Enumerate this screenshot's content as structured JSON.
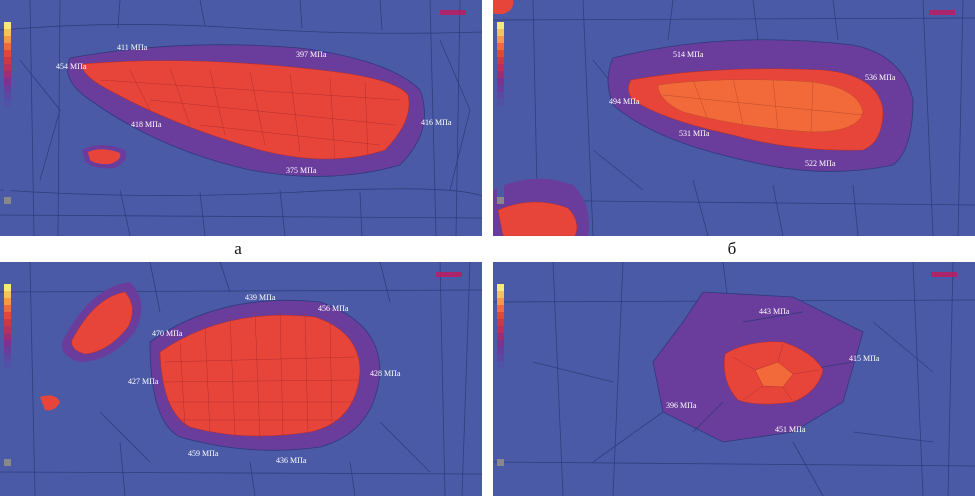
{
  "captions": {
    "a": "а",
    "b": "б"
  },
  "panels": {
    "a": {
      "labels": [
        "454 МПа",
        "411 МПа",
        "397 МПа",
        "418 МПа",
        "416 МПа",
        "375 МПа"
      ]
    },
    "b": {
      "labels": [
        "514 МПа",
        "536 МПа",
        "494 МПа",
        "531 МПа",
        "522 МПа"
      ]
    },
    "c": {
      "labels": [
        "439 МПа",
        "456 МПа",
        "470 МПа",
        "428 МПа",
        "427 МПа",
        "459 МПа",
        "436 МПа"
      ]
    },
    "d": {
      "labels": [
        "443 МПа",
        "415 МПа",
        "396 МПа",
        "451 МПа"
      ]
    }
  },
  "colors": {
    "background": "#4a5aa6",
    "mesh": "#2e3a7a",
    "transition": "#6a3d9c",
    "hot": "#e8453a",
    "hotter": "#f26a3a",
    "brand": "#c2185b"
  }
}
